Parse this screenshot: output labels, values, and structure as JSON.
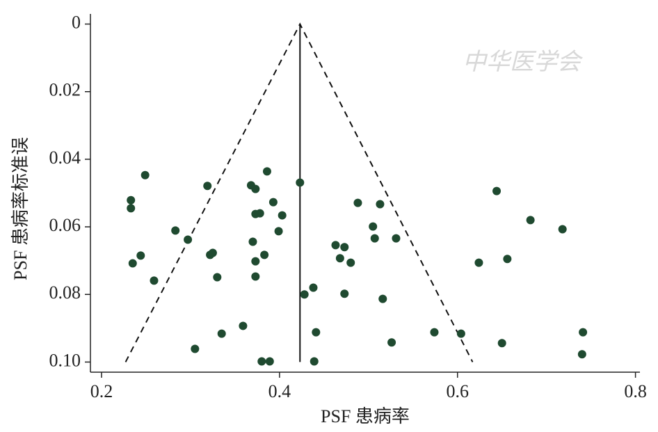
{
  "chart_data": {
    "type": "scatter",
    "x_label": "PSF 患病率",
    "y_label": "PSF 患病率标准误",
    "watermark": "中华医学会",
    "xlim": [
      0.1875,
      0.805
    ],
    "ylim": [
      -0.003,
      0.103
    ],
    "y_inverted": true,
    "xticks": [
      0.2,
      0.4,
      0.6,
      0.8
    ],
    "yticks": [
      0,
      0.02,
      0.04,
      0.06,
      0.08,
      {
        "value": 0.1,
        "label": "0.10"
      }
    ],
    "color": "#1f4a30",
    "pooled_line": {
      "x": [
        0.423,
        0.423
      ],
      "y": [
        0,
        0.1
      ]
    },
    "funnel": {
      "x": [
        0.227,
        0.423,
        0.617
      ],
      "y": [
        0.1,
        0,
        0.1
      ]
    },
    "x": [
      0.249,
      0.233,
      0.233,
      0.235,
      0.244,
      0.259,
      0.283,
      0.297,
      0.305,
      0.319,
      0.322,
      0.325,
      0.33,
      0.335,
      0.359,
      0.368,
      0.373,
      0.37,
      0.373,
      0.378,
      0.373,
      0.373,
      0.383,
      0.38,
      0.389,
      0.386,
      0.393,
      0.399,
      0.403,
      0.423,
      0.428,
      0.438,
      0.441,
      0.439,
      0.463,
      0.468,
      0.473,
      0.473,
      0.48,
      0.488,
      0.505,
      0.507,
      0.513,
      0.516,
      0.526,
      0.531,
      0.574,
      0.604,
      0.624,
      0.644,
      0.65,
      0.656,
      0.682,
      0.718,
      0.741,
      0.74
    ],
    "y": [
      0.0447,
      0.0521,
      0.0545,
      0.0708,
      0.0685,
      0.0759,
      0.0611,
      0.0638,
      0.0961,
      0.0479,
      0.0683,
      0.0677,
      0.0749,
      0.0916,
      0.0893,
      0.0477,
      0.0488,
      0.0644,
      0.0562,
      0.056,
      0.0702,
      0.0747,
      0.0683,
      0.0998,
      0.0998,
      0.0436,
      0.0527,
      0.0613,
      0.0566,
      0.0469,
      0.08,
      0.078,
      0.0912,
      0.0998,
      0.0654,
      0.0693,
      0.066,
      0.0798,
      0.0706,
      0.0529,
      0.0599,
      0.0634,
      0.0533,
      0.0813,
      0.0942,
      0.0634,
      0.0912,
      0.0916,
      0.0706,
      0.0494,
      0.0944,
      0.0695,
      0.058,
      0.0607,
      0.0912,
      0.0977
    ]
  }
}
